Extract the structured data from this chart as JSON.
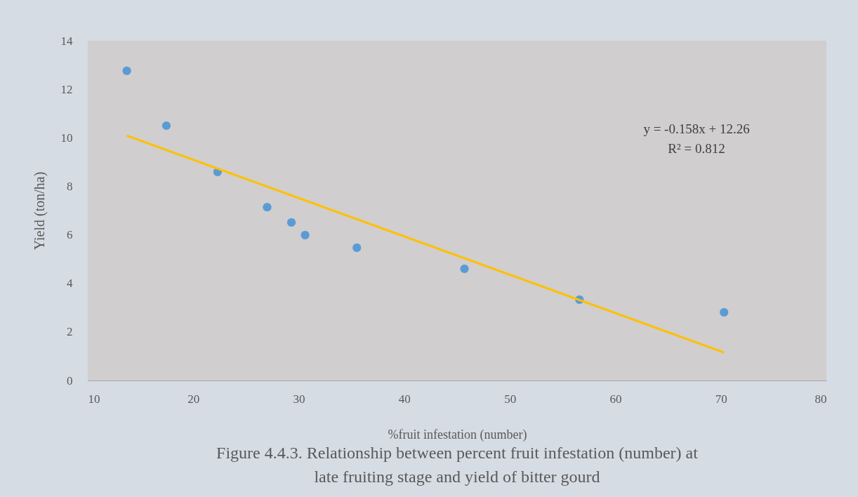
{
  "chart_data": {
    "type": "scatter",
    "title": "Figure 4.4.3. Relationship between percent fruit infestation (number) at late fruiting stage and yield of bitter gourd",
    "xlabel": "%fruit infestation (number)",
    "ylabel": "Yield (ton/ha)",
    "xlim": [
      10,
      80
    ],
    "xticks": [
      10,
      20,
      30,
      40,
      50,
      60,
      70,
      80
    ],
    "ylim": [
      0,
      14
    ],
    "yticks": [
      0,
      2,
      4,
      6,
      8,
      10,
      12,
      14
    ],
    "grid": false,
    "series": [
      {
        "type": "scatter",
        "marker": "circle",
        "color": "#5b9bd5",
        "x": [
          13.7,
          17.45,
          22.3,
          27.0,
          29.3,
          30.6,
          35.5,
          45.7,
          56.6,
          70.3
        ],
        "values": [
          12.76,
          10.5,
          8.59,
          7.14,
          6.51,
          5.99,
          5.47,
          4.6,
          3.33,
          2.81
        ]
      },
      {
        "type": "line",
        "marker": "none",
        "line_style": "solid",
        "color": "#ffc000",
        "x": [
          13.7,
          70.3
        ],
        "values": [
          10.09,
          1.15
        ]
      }
    ],
    "annotations": [
      "y = -0.158x + 12.26",
      "R² = 0.812"
    ]
  }
}
